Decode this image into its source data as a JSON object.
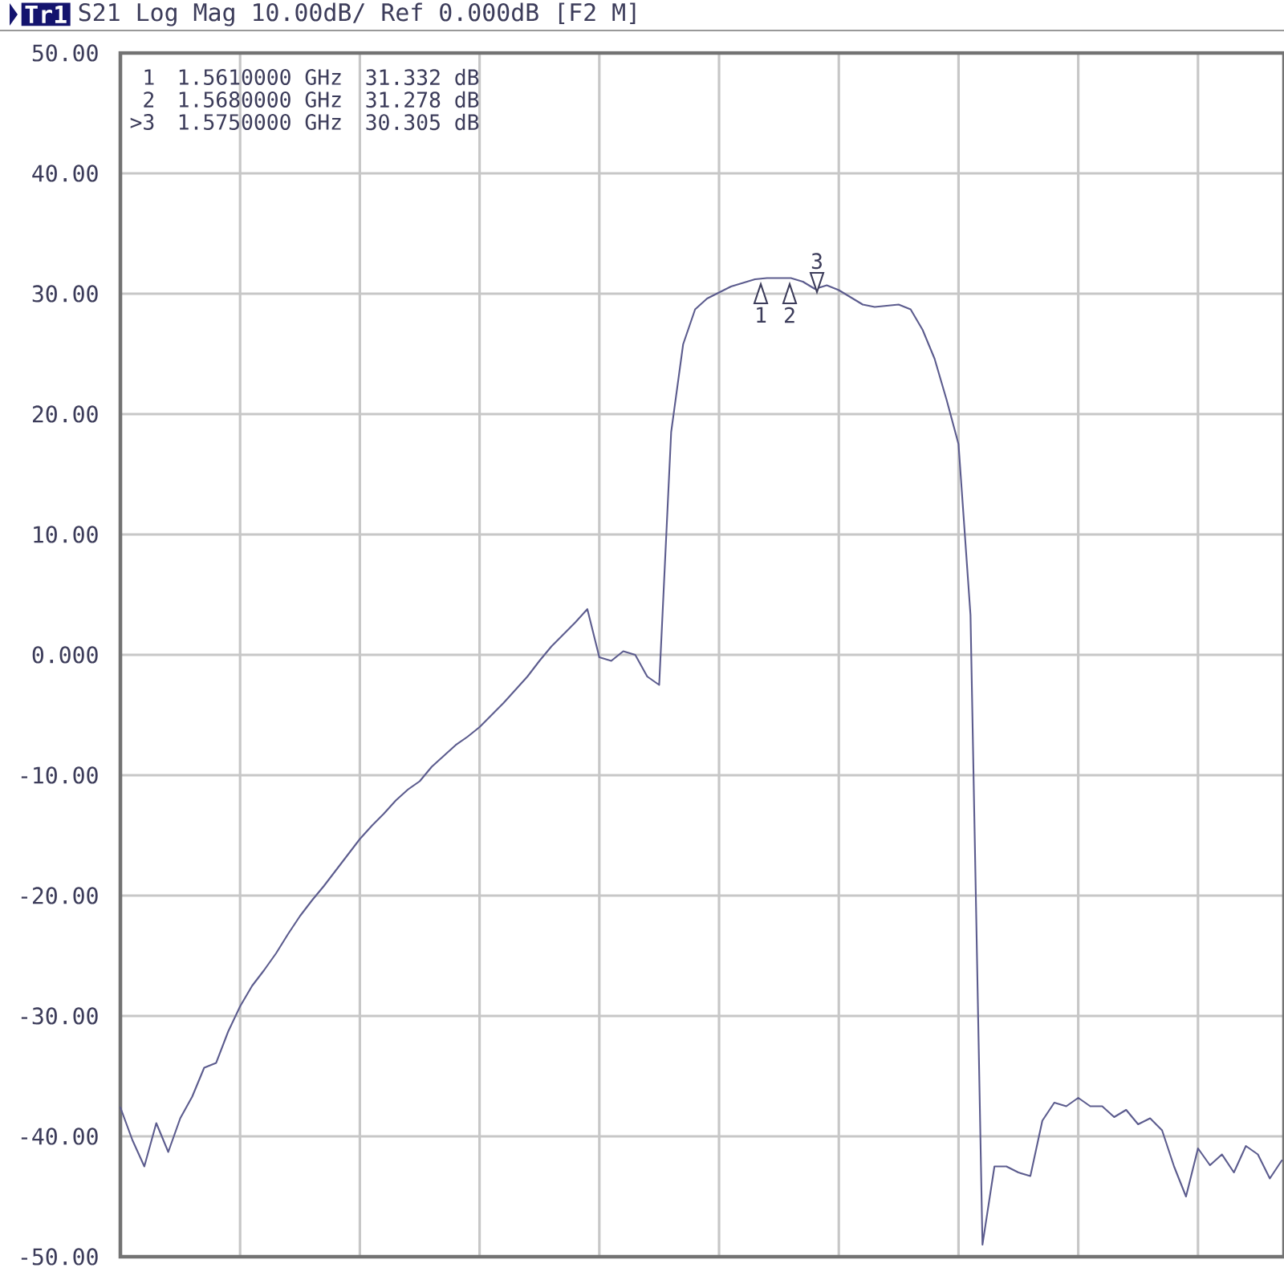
{
  "chart_data": {
    "type": "line",
    "title": "Tr1",
    "subtitle": "S21 Log Mag 10.00dB/ Ref 0.000dB [F2 M]",
    "categories": [
      null,
      null,
      null,
      null,
      null,
      null,
      null,
      null,
      null,
      null,
      null,
      null,
      null,
      null,
      null,
      null,
      null,
      null,
      null,
      null,
      null,
      null,
      null,
      null,
      null,
      null,
      null,
      null,
      null,
      null,
      null,
      null,
      null,
      null,
      null,
      null,
      null,
      null,
      null,
      null,
      null,
      null,
      null,
      null,
      null,
      null,
      null,
      null,
      null,
      null,
      null,
      null,
      null,
      null,
      null,
      null,
      null,
      null,
      null,
      null,
      null,
      null,
      null,
      null,
      null,
      null,
      null,
      null,
      null,
      null,
      null,
      null,
      null,
      null,
      null,
      null,
      null,
      null,
      null,
      null,
      null,
      null,
      null,
      null,
      null,
      null,
      null,
      null,
      null,
      null,
      null,
      null,
      null,
      null,
      null,
      null,
      null,
      null
    ],
    "values": [
      -37.6,
      -40.3,
      -42.5,
      -38.9,
      -41.3,
      -38.5,
      -36.7,
      -34.3,
      -33.9,
      -31.3,
      -29.2,
      -27.5,
      -26.2,
      -24.8,
      -23.2,
      -21.7,
      -20.4,
      -19.2,
      -17.9,
      -16.6,
      -15.3,
      -14.2,
      -13.2,
      -12.1,
      -11.2,
      -10.5,
      -9.3,
      -8.4,
      -7.5,
      -6.8,
      -6.0,
      -5.0,
      -4.0,
      -2.9,
      -1.8,
      -0.5,
      0.7,
      1.7,
      2.7,
      3.8,
      -0.2,
      -0.5,
      0.3,
      0.0,
      -1.8,
      -2.5,
      18.5,
      25.8,
      28.7,
      29.6,
      30.1,
      30.6,
      30.9,
      31.2,
      31.3,
      31.3,
      31.3,
      31.0,
      30.4,
      30.7,
      30.3,
      29.7,
      29.1,
      28.9,
      29.0,
      29.1,
      28.7,
      27.0,
      24.6,
      21.2,
      17.5,
      3.3,
      -49.0,
      -42.5,
      -42.5,
      -43.0,
      -43.3,
      -38.7,
      -37.2,
      -37.5,
      -36.8,
      -37.5,
      -37.5,
      -38.4,
      -37.8,
      -39.0,
      -38.5,
      -39.5,
      -42.5,
      -45.0,
      -41.0,
      -42.4,
      -41.5,
      -43.0,
      -40.8,
      -41.5,
      -43.5,
      -42.0
    ],
    "color": "#5c5c8e",
    "ylim": [
      -50,
      50
    ],
    "yticks": [
      {
        "value": 50,
        "label": "50.00"
      },
      {
        "value": 40,
        "label": "40.00"
      },
      {
        "value": 30,
        "label": "30.00"
      },
      {
        "value": 20,
        "label": "20.00"
      },
      {
        "value": 10,
        "label": "10.00"
      },
      {
        "value": 0,
        "label": "0.000"
      },
      {
        "value": -10,
        "label": "-10.00"
      },
      {
        "value": -20,
        "label": "-20.00"
      },
      {
        "value": -30,
        "label": "-30.00"
      },
      {
        "value": -40,
        "label": "-40.00"
      },
      {
        "value": -50,
        "label": "-50.00"
      }
    ],
    "grid": true,
    "tick_labels": "y",
    "marker": "none",
    "line_style": "solid",
    "annotations": [
      "1",
      "1.5610000 GHz",
      "31.332 dB",
      "2",
      "1.5680000 GHz",
      "31.278 dB",
      ">3",
      "1.5750000 GHz",
      "30.305 dB",
      "1",
      "2",
      "3"
    ]
  }
}
